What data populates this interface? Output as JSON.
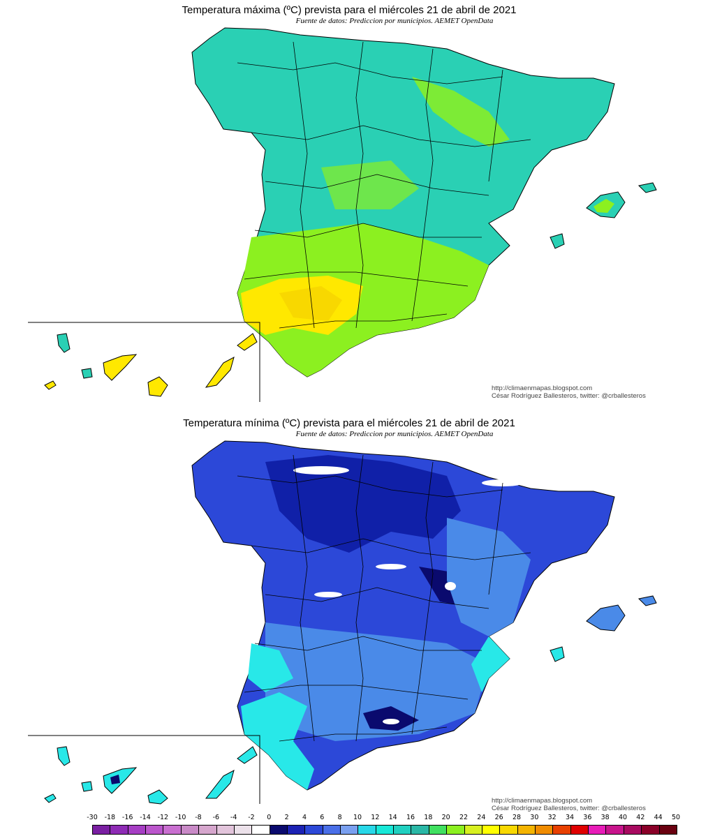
{
  "max_map": {
    "title": "Temperatura máxima (ºC) prevista para el miércoles 21 de abril de 2021",
    "subtitle": "Fuente de datos: Prediccion por municipios. AEMET OpenData",
    "credit_url": "http://climaenmapas.blogspot.com",
    "credit_author": "César Rodríguez Ballesteros, twitter: @crballesteros"
  },
  "min_map": {
    "title": "Temperatura mínima (ºC) prevista para el miércoles 21 de abril de 2021",
    "subtitle": "Fuente de datos: Prediccion por municipios. AEMET OpenData",
    "credit_url": "http://climaenmapas.blogspot.com",
    "credit_author": "César Rodríguez Ballesteros, twitter: @crballesteros"
  },
  "legend": {
    "ticks": [
      "-30",
      "-18",
      "-16",
      "-14",
      "-12",
      "-10",
      "-8",
      "-6",
      "-4",
      "-2",
      "0",
      "2",
      "4",
      "6",
      "8",
      "10",
      "12",
      "14",
      "16",
      "18",
      "20",
      "22",
      "24",
      "26",
      "28",
      "30",
      "32",
      "34",
      "36",
      "38",
      "40",
      "42",
      "44",
      "50"
    ],
    "colors": [
      "#7a1fa2",
      "#8e2bb5",
      "#a63ec4",
      "#bb56cc",
      "#c96fd0",
      "#c98ac7",
      "#d6a6cd",
      "#e2c4db",
      "#ece1ea",
      "#ffffff",
      "#0a0a6e",
      "#1c22b4",
      "#2c48d8",
      "#4a6fe8",
      "#7aa0f0",
      "#28d8e8",
      "#18e8d8",
      "#20d0c0",
      "#2ab8a6",
      "#40e060",
      "#8cf020",
      "#d8f020",
      "#ffff00",
      "#f8d800",
      "#f4b400",
      "#f08c00",
      "#e84000",
      "#e00000",
      "#e81cb8",
      "#c8148c",
      "#a80a60",
      "#8a0028",
      "#6a0010"
    ]
  },
  "colors": {
    "max_base": "#2ad0b4",
    "max_warm": "#8cf020",
    "max_hot": "#ffe800",
    "min_base": "#2c48d8",
    "min_cold": "#1020a8",
    "min_mild": "#4a8ae8",
    "min_coast": "#28e8e8",
    "border": "#000000"
  }
}
